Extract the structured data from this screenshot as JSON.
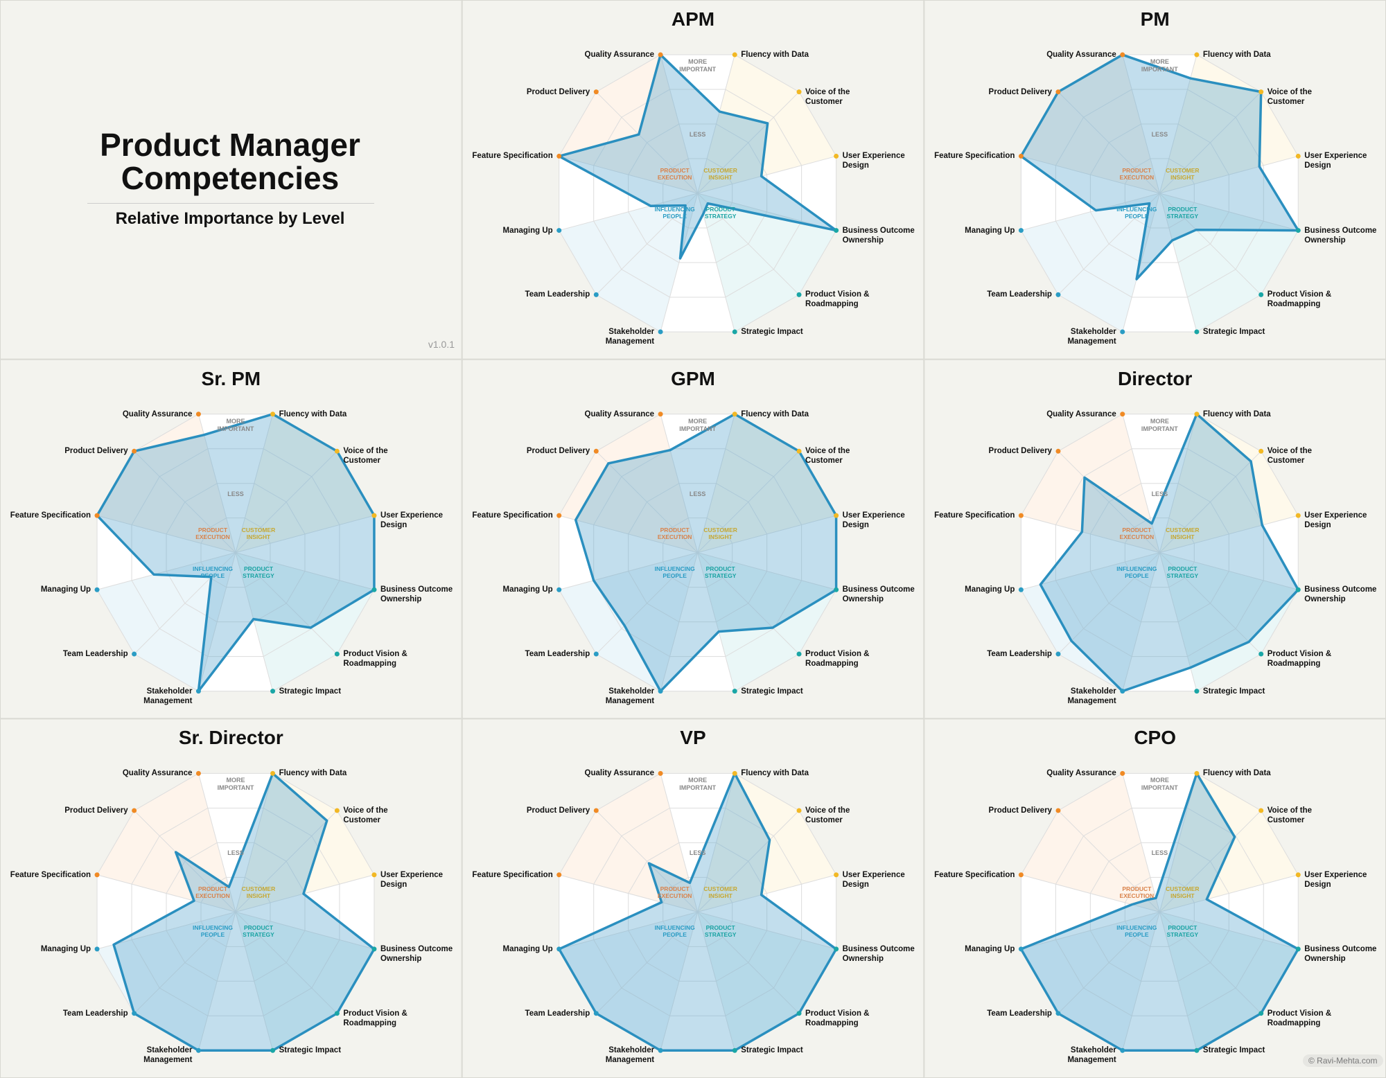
{
  "header": {
    "title": "Product Manager Competencies",
    "subtitle": "Relative Importance by Level",
    "version": "v1.0.1",
    "credit": "© Ravi-Mehta.com"
  },
  "labels": {
    "more": "MORE IMPORTANT",
    "less": "LESS",
    "groups": [
      {
        "text": "PRODUCT EXECUTION",
        "color": "#d9824a"
      },
      {
        "text": "CUSTOMER INSIGHT",
        "color": "#c6a832"
      },
      {
        "text": "INFLUENCING PEOPLE",
        "color": "#2a9cc4"
      },
      {
        "text": "PRODUCT STRATEGY",
        "color": "#1aa3a3"
      }
    ]
  },
  "chart_data": [
    {
      "type": "radar",
      "title": "APM",
      "categories": [
        "Fluency with Data",
        "Voice of the Customer",
        "User Experience Design",
        "Business Outcome Ownership",
        "Product Vision & Roadmapping",
        "Strategic Impact",
        "Stakeholder Management",
        "Team Leadership",
        "Managing Up",
        "Feature Specification",
        "Product Delivery",
        "Quality Assurance"
      ],
      "category_colors": [
        "#f2b824",
        "#f2b824",
        "#f2b824",
        "#1aa6a6",
        "#1aa6a6",
        "#1aa6a6",
        "#2a9cc4",
        "#2a9cc4",
        "#2a9cc4",
        "#f08a24",
        "#f08a24",
        "#f08a24"
      ],
      "values": [
        59,
        69,
        46,
        100,
        10,
        15,
        47,
        12,
        34,
        100,
        58,
        100
      ],
      "color": "#2a8fbf",
      "ylim": [
        0,
        100
      ],
      "yticks": [
        25,
        50,
        75,
        100
      ],
      "grid": true
    },
    {
      "type": "radar",
      "title": "PM",
      "categories": [
        "Fluency with Data",
        "Voice of the Customer",
        "User Experience Design",
        "Business Outcome Ownership",
        "Product Vision & Roadmapping",
        "Strategic Impact",
        "Stakeholder Management",
        "Team Leadership",
        "Managing Up",
        "Feature Specification",
        "Product Delivery",
        "Quality Assurance"
      ],
      "category_colors": [
        "#f2b824",
        "#f2b824",
        "#f2b824",
        "#1aa6a6",
        "#1aa6a6",
        "#1aa6a6",
        "#2a9cc4",
        "#2a9cc4",
        "#2a9cc4",
        "#f08a24",
        "#f08a24",
        "#f08a24"
      ],
      "values": [
        83,
        100,
        72,
        100,
        36,
        34,
        62,
        10,
        46,
        100,
        100,
        100
      ],
      "color": "#2a8fbf",
      "ylim": [
        0,
        100
      ],
      "yticks": [
        25,
        50,
        75,
        100
      ],
      "grid": true
    },
    {
      "type": "radar",
      "title": "Sr. PM",
      "categories": [
        "Fluency with Data",
        "Voice of the Customer",
        "User Experience Design",
        "Business Outcome Ownership",
        "Product Vision & Roadmapping",
        "Strategic Impact",
        "Stakeholder Management",
        "Team Leadership",
        "Managing Up",
        "Feature Specification",
        "Product Delivery",
        "Quality Assurance"
      ],
      "category_colors": [
        "#f2b824",
        "#f2b824",
        "#f2b824",
        "#1aa6a6",
        "#1aa6a6",
        "#1aa6a6",
        "#2a9cc4",
        "#2a9cc4",
        "#2a9cc4",
        "#f08a24",
        "#f08a24",
        "#f08a24"
      ],
      "values": [
        100,
        100,
        100,
        100,
        74,
        48,
        100,
        24,
        59,
        100,
        100,
        85
      ],
      "color": "#2a8fbf",
      "ylim": [
        0,
        100
      ],
      "yticks": [
        25,
        50,
        75,
        100
      ],
      "grid": true
    },
    {
      "type": "radar",
      "title": "GPM",
      "categories": [
        "Fluency with Data",
        "Voice of the Customer",
        "User Experience Design",
        "Business Outcome Ownership",
        "Product Vision & Roadmapping",
        "Strategic Impact",
        "Stakeholder Management",
        "Team Leadership",
        "Managing Up",
        "Feature Specification",
        "Product Delivery",
        "Quality Assurance"
      ],
      "category_colors": [
        "#f2b824",
        "#f2b824",
        "#f2b824",
        "#1aa6a6",
        "#1aa6a6",
        "#1aa6a6",
        "#2a9cc4",
        "#2a9cc4",
        "#2a9cc4",
        "#f08a24",
        "#f08a24",
        "#f08a24"
      ],
      "values": [
        100,
        100,
        100,
        100,
        74,
        57,
        100,
        72,
        75,
        88,
        88,
        74
      ],
      "color": "#2a8fbf",
      "ylim": [
        0,
        100
      ],
      "yticks": [
        25,
        50,
        75,
        100
      ],
      "grid": true
    },
    {
      "type": "radar",
      "title": "Director",
      "categories": [
        "Fluency with Data",
        "Voice of the Customer",
        "User Experience Design",
        "Business Outcome Ownership",
        "Product Vision & Roadmapping",
        "Strategic Impact",
        "Stakeholder Management",
        "Team Leadership",
        "Managing Up",
        "Feature Specification",
        "Product Delivery",
        "Quality Assurance"
      ],
      "category_colors": [
        "#f2b824",
        "#f2b824",
        "#f2b824",
        "#1aa6a6",
        "#1aa6a6",
        "#1aa6a6",
        "#2a9cc4",
        "#2a9cc4",
        "#2a9cc4",
        "#f08a24",
        "#f08a24",
        "#f08a24"
      ],
      "values": [
        100,
        90,
        74,
        100,
        88,
        83,
        100,
        87,
        86,
        56,
        74,
        21
      ],
      "color": "#2a8fbf",
      "ylim": [
        0,
        100
      ],
      "yticks": [
        25,
        50,
        75,
        100
      ],
      "grid": true
    },
    {
      "type": "radar",
      "title": "Sr. Director",
      "categories": [
        "Fluency with Data",
        "Voice of the Customer",
        "User Experience Design",
        "Business Outcome Ownership",
        "Product Vision & Roadmapping",
        "Strategic Impact",
        "Stakeholder Management",
        "Team Leadership",
        "Managing Up",
        "Feature Specification",
        "Product Delivery",
        "Quality Assurance"
      ],
      "category_colors": [
        "#f2b824",
        "#f2b824",
        "#f2b824",
        "#1aa6a6",
        "#1aa6a6",
        "#1aa6a6",
        "#2a9cc4",
        "#2a9cc4",
        "#2a9cc4",
        "#f08a24",
        "#f08a24",
        "#f08a24"
      ],
      "values": [
        100,
        90,
        49,
        100,
        100,
        100,
        100,
        100,
        88,
        30,
        59,
        18
      ],
      "color": "#2a8fbf",
      "ylim": [
        0,
        100
      ],
      "yticks": [
        25,
        50,
        75,
        100
      ],
      "grid": true
    },
    {
      "type": "radar",
      "title": "VP",
      "categories": [
        "Fluency with Data",
        "Voice of the Customer",
        "User Experience Design",
        "Business Outcome Ownership",
        "Product Vision & Roadmapping",
        "Strategic Impact",
        "Stakeholder Management",
        "Team Leadership",
        "Managing Up",
        "Feature Specification",
        "Product Delivery",
        "Quality Assurance"
      ],
      "category_colors": [
        "#f2b824",
        "#f2b824",
        "#f2b824",
        "#1aa6a6",
        "#1aa6a6",
        "#1aa6a6",
        "#2a9cc4",
        "#2a9cc4",
        "#2a9cc4",
        "#f08a24",
        "#f08a24",
        "#f08a24"
      ],
      "values": [
        100,
        71,
        46,
        100,
        100,
        100,
        100,
        100,
        100,
        26,
        48,
        21
      ],
      "color": "#2a8fbf",
      "ylim": [
        0,
        100
      ],
      "yticks": [
        25,
        50,
        75,
        100
      ],
      "grid": true
    },
    {
      "type": "radar",
      "title": "CPO",
      "categories": [
        "Fluency with Data",
        "Voice of the Customer",
        "User Experience Design",
        "Business Outcome Ownership",
        "Product Vision & Roadmapping",
        "Strategic Impact",
        "Stakeholder Management",
        "Team Leadership",
        "Managing Up",
        "Feature Specification",
        "Product Delivery",
        "Quality Assurance"
      ],
      "category_colors": [
        "#f2b824",
        "#f2b824",
        "#f2b824",
        "#1aa6a6",
        "#1aa6a6",
        "#1aa6a6",
        "#2a9cc4",
        "#2a9cc4",
        "#2a9cc4",
        "#f08a24",
        "#f08a24",
        "#f08a24"
      ],
      "values": [
        100,
        74,
        34,
        100,
        100,
        100,
        100,
        100,
        100,
        20,
        12,
        10
      ],
      "color": "#2a8fbf",
      "ylim": [
        0,
        100
      ],
      "yticks": [
        25,
        50,
        75,
        100
      ],
      "grid": true
    }
  ]
}
